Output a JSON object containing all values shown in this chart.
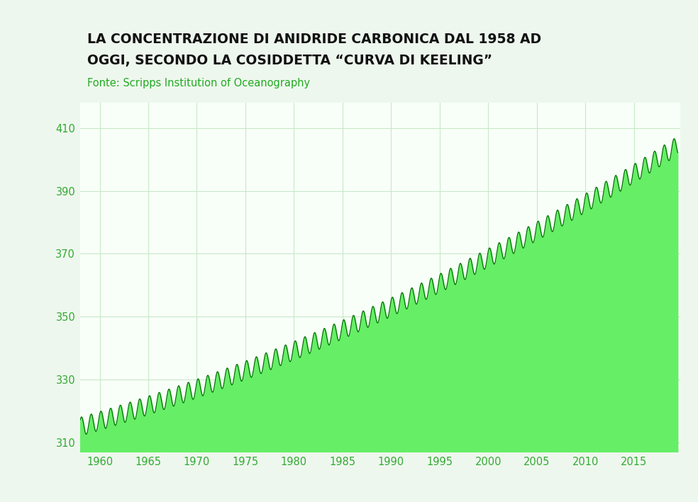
{
  "title_line1": "LA CONCENTRAZIONE DI ANIDRIDE CARBONICA DAL 1958 AD",
  "title_line2": "OGGI, SECONDO LA COSIDDETTA “CURVA DI KEELING”",
  "subtitle": "Fonte: Scripps Institution of Oceanography",
  "bg_color": "#eef7ee",
  "plot_bg_color": "#f8fff8",
  "line_color": "#006600",
  "fill_color": "#66ee66",
  "title_color": "#111111",
  "subtitle_color": "#22aa22",
  "tick_color": "#33aa33",
  "grid_color": "#c8e8c8",
  "ylim": [
    307,
    418
  ],
  "xlim": [
    1958.0,
    2019.8
  ],
  "yticks": [
    310,
    330,
    350,
    370,
    390,
    410
  ],
  "xticks": [
    1960,
    1965,
    1970,
    1975,
    1980,
    1985,
    1990,
    1995,
    2000,
    2005,
    2010,
    2015
  ]
}
